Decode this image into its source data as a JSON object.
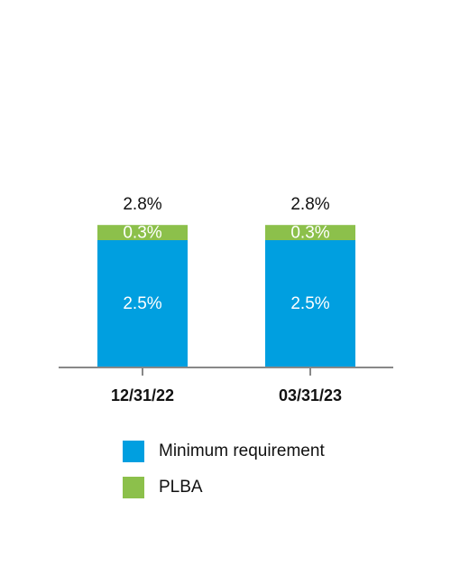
{
  "chart_data": {
    "type": "stacked-bar",
    "categories": [
      "12/31/22",
      "03/31/23"
    ],
    "series": [
      {
        "name": "Minimum requirement",
        "color": "#009fe0",
        "values": [
          2.5,
          2.5
        ],
        "value_labels": [
          "2.5%",
          "2.5%"
        ]
      },
      {
        "name": "PLBA",
        "color": "#8cc04b",
        "values": [
          0.3,
          0.3
        ],
        "value_labels": [
          "0.3%",
          "0.3%"
        ]
      }
    ],
    "total_labels": [
      "2.8%",
      "2.8%"
    ]
  }
}
